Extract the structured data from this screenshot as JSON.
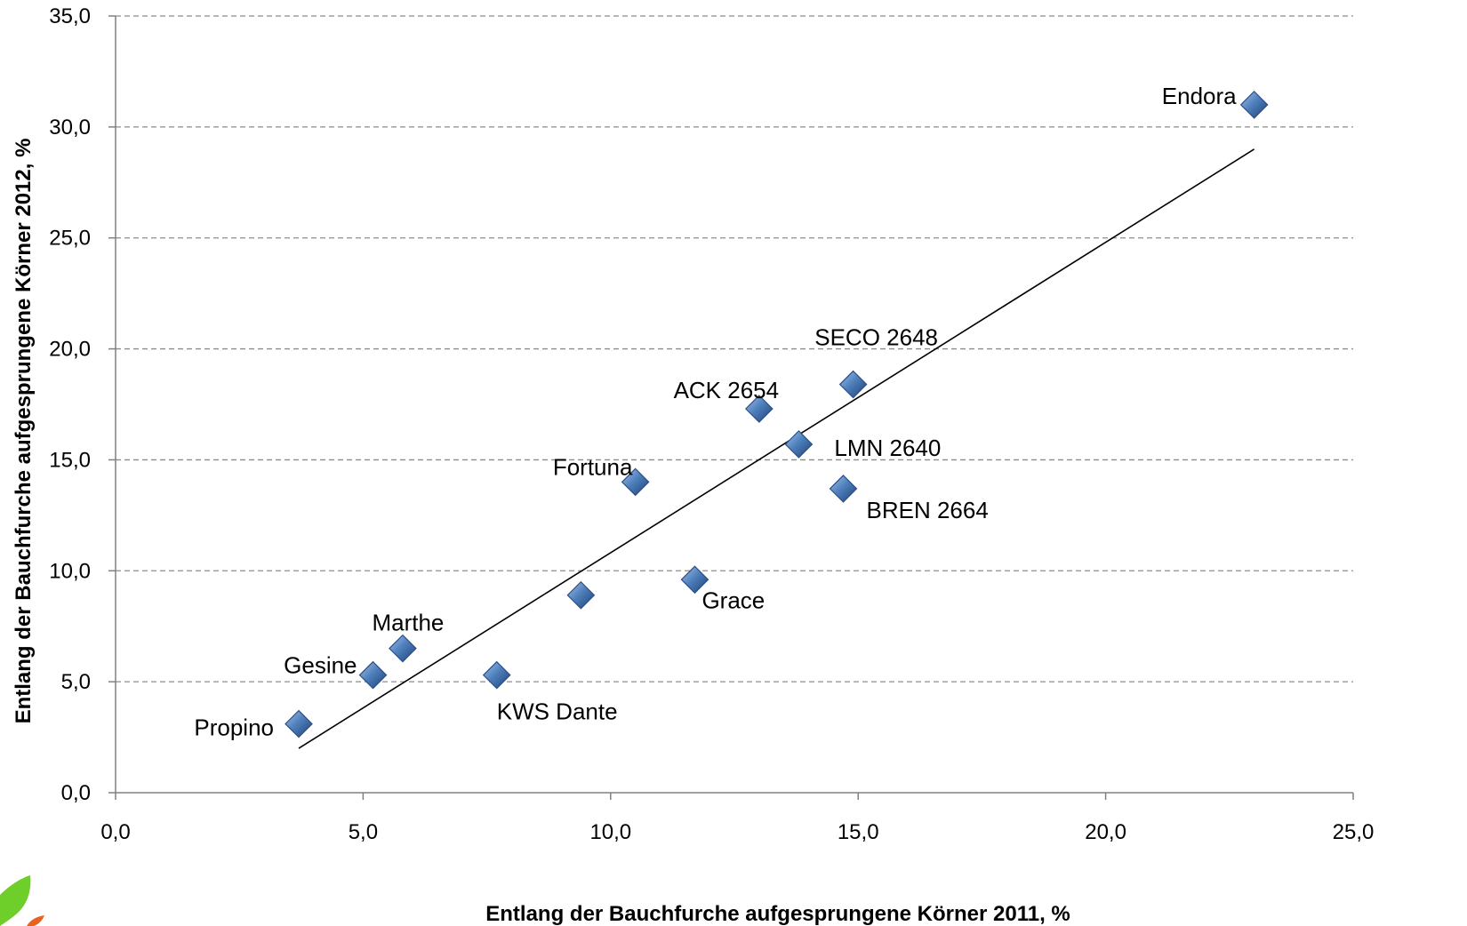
{
  "chart_data": {
    "type": "scatter",
    "title": "",
    "xlabel": "Entlang der Bauchfurche aufgesprungene Körner 2011, %",
    "ylabel": "Entlang der Bauchfurche aufgesprungene Körner 2012, %",
    "xlim": [
      0,
      25
    ],
    "ylim": [
      0,
      35
    ],
    "x_ticks": [
      "0,0",
      "5,0",
      "10,0",
      "15,0",
      "20,0",
      "25,0"
    ],
    "y_ticks": [
      "0,0",
      "5,0",
      "10,0",
      "15,0",
      "20,0",
      "25,0",
      "30,0",
      "35,0"
    ],
    "grid": "horizontal dashed",
    "legend": "none",
    "marker_color": "#4f81bd",
    "points": [
      {
        "label": "Propino",
        "x": 3.7,
        "y": 3.1
      },
      {
        "label": "Gesine",
        "x": 5.2,
        "y": 5.3
      },
      {
        "label": "Marthe",
        "x": 5.8,
        "y": 6.5
      },
      {
        "label": "KWS Dante",
        "x": 7.7,
        "y": 5.3
      },
      {
        "label": "",
        "x": 9.4,
        "y": 8.9
      },
      {
        "label": "Fortuna",
        "x": 10.5,
        "y": 14.0
      },
      {
        "label": "Grace",
        "x": 11.7,
        "y": 9.6
      },
      {
        "label": "ACK 2654",
        "x": 13.0,
        "y": 17.3
      },
      {
        "label": "LMN 2640",
        "x": 13.8,
        "y": 15.7
      },
      {
        "label": "BREN 2664",
        "x": 14.7,
        "y": 13.7
      },
      {
        "label": "SECO 2648",
        "x": 14.9,
        "y": 18.4
      },
      {
        "label": "Endora",
        "x": 23.0,
        "y": 31.0
      }
    ],
    "trendline": {
      "x": [
        3.7,
        23.0
      ],
      "y": [
        2.0,
        29.0
      ]
    }
  }
}
